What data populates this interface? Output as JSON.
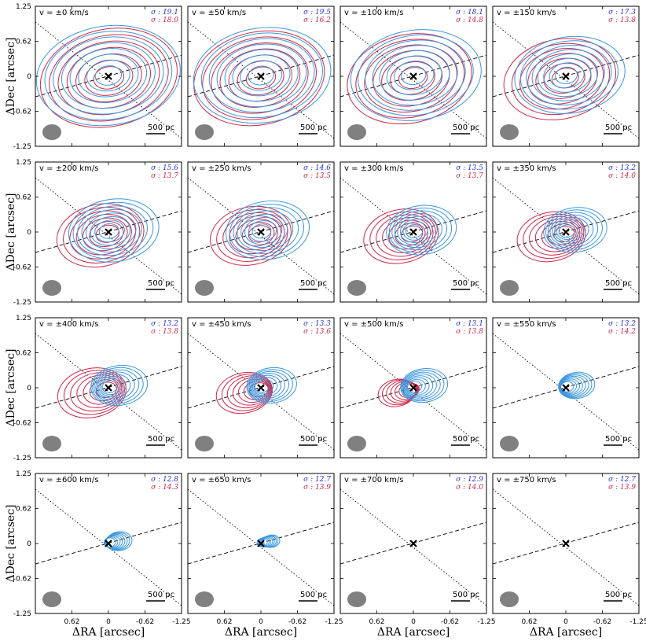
{
  "chart_data": {
    "type": "contour",
    "grid": {
      "rows": 4,
      "cols": 4
    },
    "xlabel": "ΔRA [arcsec]",
    "ylabel": "ΔDec [arcsec]",
    "xlim": [
      1.25,
      -1.25
    ],
    "ylim": [
      -1.25,
      1.25
    ],
    "x_ticks": [
      "0.62",
      "0",
      "-0.62",
      "-1.25"
    ],
    "y_ticks": [
      "1.25",
      "0.62",
      "0",
      "-0.62",
      "-1.25"
    ],
    "scalebar_label": "500 pc",
    "colors": {
      "blue": "#3a97e0",
      "red": "#d0284a",
      "blue_text": "#2233dd",
      "beam": "#808080"
    },
    "panels": [
      {
        "velocity_label": "v = ±0 km/s",
        "sigma_blue": "σ : 19.1",
        "sigma_red": "σ : 18.0",
        "blue_extent": 1.0,
        "red_extent": 1.0
      },
      {
        "velocity_label": "v = ±50 km/s",
        "sigma_blue": "σ : 19.5",
        "sigma_red": "σ : 16.2",
        "blue_extent": 0.95,
        "red_extent": 0.95
      },
      {
        "velocity_label": "v = ±100 km/s",
        "sigma_blue": "σ : 18.1",
        "sigma_red": "σ : 14.8",
        "blue_extent": 0.9,
        "red_extent": 0.9
      },
      {
        "velocity_label": "v = ±150 km/s",
        "sigma_blue": "σ : 17.3",
        "sigma_red": "σ : 13.8",
        "blue_extent": 0.75,
        "red_extent": 0.8
      },
      {
        "velocity_label": "v = ±200 km/s",
        "sigma_blue": "σ : 15.6",
        "sigma_red": "σ : 13.7",
        "blue_extent": 0.6,
        "red_extent": 0.6
      },
      {
        "velocity_label": "v = ±250 km/s",
        "sigma_blue": "σ : 14.6",
        "sigma_red": "σ : 13.5",
        "blue_extent": 0.55,
        "red_extent": 0.55
      },
      {
        "velocity_label": "v = ±300 km/s",
        "sigma_blue": "σ : 13.5",
        "sigma_red": "σ : 13.7",
        "blue_extent": 0.45,
        "red_extent": 0.5
      },
      {
        "velocity_label": "v = ±350 km/s",
        "sigma_blue": "σ : 13.2",
        "sigma_red": "σ : 14.0",
        "blue_extent": 0.4,
        "red_extent": 0.45
      },
      {
        "velocity_label": "v = ±400 km/s",
        "sigma_blue": "σ : 13.2",
        "sigma_red": "σ : 13.8",
        "blue_extent": 0.35,
        "red_extent": 0.45
      },
      {
        "velocity_label": "v = ±450 km/s",
        "sigma_blue": "σ : 13.3",
        "sigma_red": "σ : 13.6",
        "blue_extent": 0.3,
        "red_extent": 0.35
      },
      {
        "velocity_label": "v = ±500 km/s",
        "sigma_blue": "σ : 13.1",
        "sigma_red": "σ : 13.8",
        "blue_extent": 0.28,
        "red_extent": 0.2
      },
      {
        "velocity_label": "v = ±550 km/s",
        "sigma_blue": "σ : 13.2",
        "sigma_red": "σ : 14.2",
        "blue_extent": 0.2,
        "red_extent": 0.0
      },
      {
        "velocity_label": "v = ±600 km/s",
        "sigma_blue": "σ : 12.8",
        "sigma_red": "σ : 14.3",
        "blue_extent": 0.12,
        "red_extent": 0.0
      },
      {
        "velocity_label": "v = ±650 km/s",
        "sigma_blue": "σ : 12.7",
        "sigma_red": "σ : 13.9",
        "blue_extent": 0.05,
        "red_extent": 0.0
      },
      {
        "velocity_label": "v = ±700 km/s",
        "sigma_blue": "σ : 12.9",
        "sigma_red": "σ : 14.0",
        "blue_extent": 0.0,
        "red_extent": 0.0
      },
      {
        "velocity_label": "v = ±750 km/s",
        "sigma_blue": "σ : 12.7",
        "sigma_red": "σ : 13.9",
        "blue_extent": 0.0,
        "red_extent": 0.0
      }
    ]
  }
}
